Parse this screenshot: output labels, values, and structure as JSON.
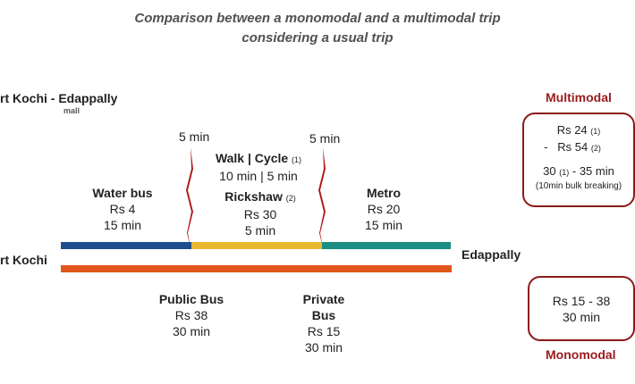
{
  "title": {
    "line1": "Comparison between a monomodal and a multimodal trip",
    "line2": "considering a usual trip"
  },
  "route": {
    "label": "rt Kochi - Edappally",
    "sub_label": "mall",
    "start": "rt Kochi",
    "end": "Edappally"
  },
  "multimodal": {
    "label": "Multimodal",
    "box": {
      "line1": "Rs 24",
      "line1_note": "(1)",
      "line2_prefix": "-",
      "line2": "Rs 54",
      "line2_note": "(2)",
      "line3_a": "30",
      "line3_note": "(1)",
      "line3_b": "- 35 min",
      "line4": "(10min bulk breaking)"
    },
    "transfer_left": "5 min",
    "transfer_right": "5 min",
    "segments": {
      "water_bus": {
        "name": "Water bus",
        "cost": "Rs 4",
        "time": "15 min"
      },
      "walk_cycle": {
        "walk": "Walk",
        "sep": "|",
        "cycle": "Cycle",
        "note": "(1)",
        "time_a": "10 min",
        "time_sep": "|",
        "time_b": "5 min"
      },
      "rickshaw": {
        "name": "Rickshaw",
        "note": "(2)",
        "cost": "Rs 30",
        "time": "5 min"
      },
      "metro": {
        "name": "Metro",
        "cost": "Rs 20",
        "time": "15 min"
      }
    },
    "colors": {
      "water_bus": "#1f4e8c",
      "last_mile": "#e9b730",
      "metro": "#1a8e84"
    }
  },
  "monomodal": {
    "label": "Monomodal",
    "box": {
      "line1": "Rs 15 - 38",
      "line2": "30 min"
    },
    "public_bus": {
      "name": "Public Bus",
      "cost": "Rs 38",
      "time": "30 min"
    },
    "private_bus": {
      "name_line1": "Private",
      "name_line2": "Bus",
      "cost": "Rs 15",
      "time": "30 min"
    },
    "colors": {
      "bus": "#e0551b"
    }
  },
  "colors": {
    "accent": "#9b1b1e",
    "title": "#505050",
    "transfer_mark": "#b01818"
  }
}
